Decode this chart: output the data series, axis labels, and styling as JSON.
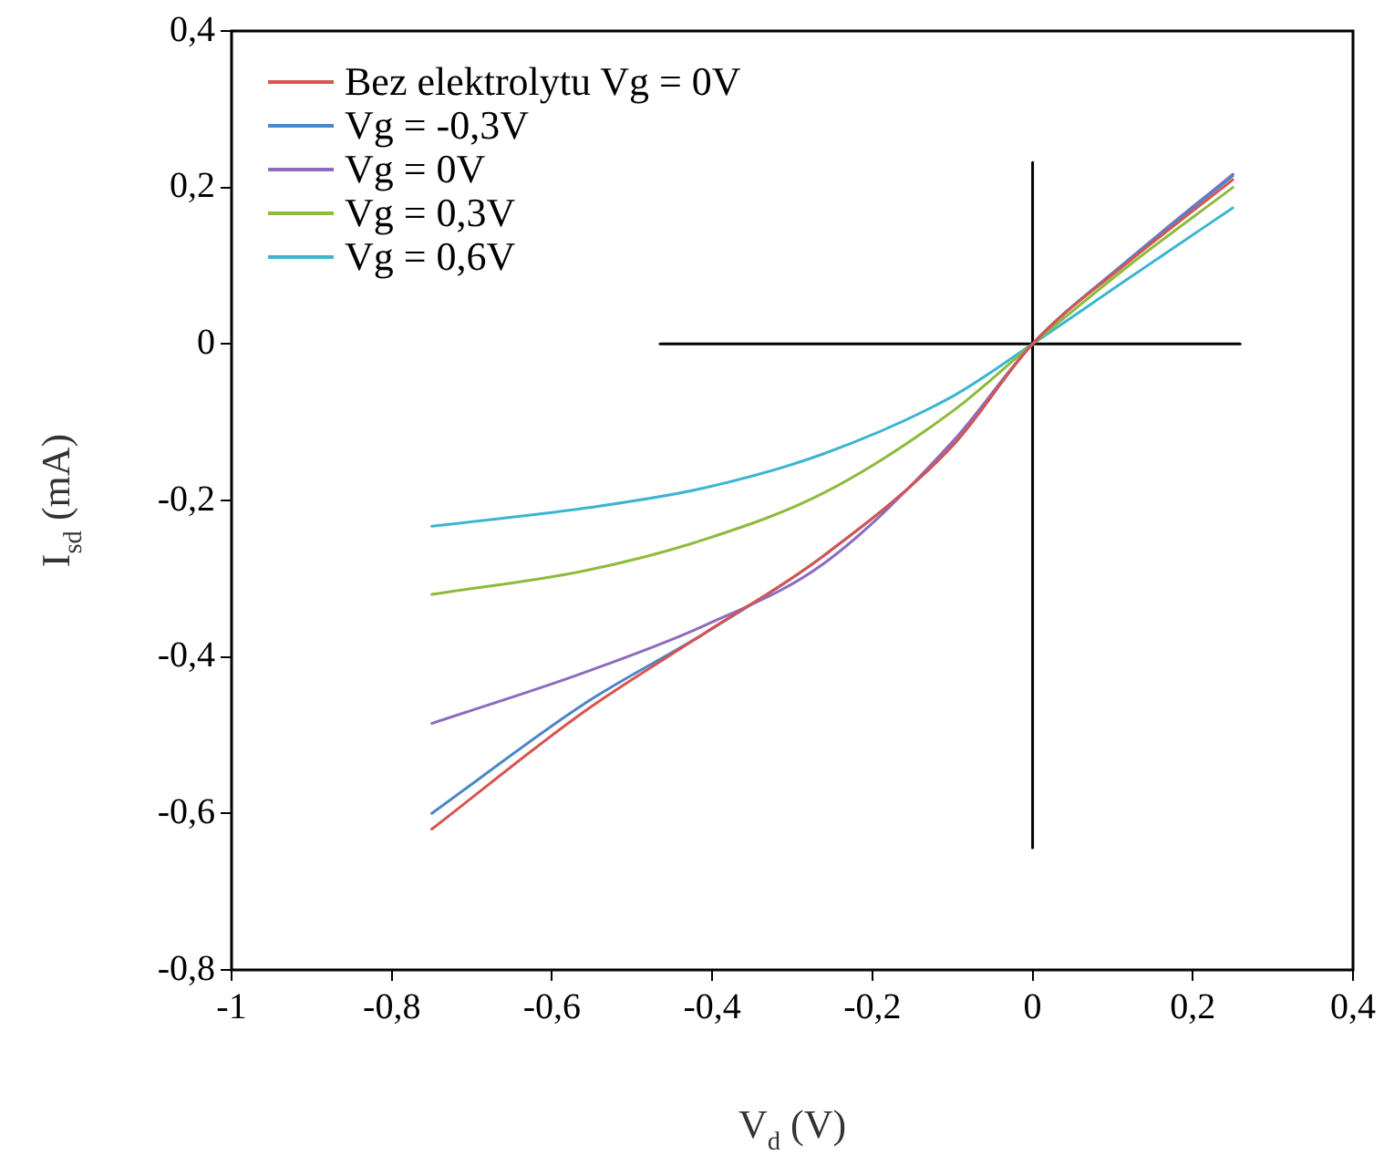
{
  "chart_data": {
    "type": "line",
    "xlabel": "V$_{d}$ (V)",
    "ylabel": "I$_{sd}$ (mA)",
    "xlim": [
      -1,
      0.4
    ],
    "xticks": [
      -1,
      {
        "value": -0.8,
        "label": "-0,8"
      },
      {
        "value": -0.6,
        "label": "-0,6"
      },
      {
        "value": -0.4,
        "label": "-0,4"
      },
      {
        "value": -0.2,
        "label": "-0,2"
      },
      0,
      {
        "value": 0.2,
        "label": "0,2"
      },
      {
        "value": 0.4,
        "label": "0,4"
      }
    ],
    "ylim": [
      -0.8,
      0.4
    ],
    "yticks": [
      {
        "value": -0.8,
        "label": "-0,8"
      },
      {
        "value": -0.6,
        "label": "-0,6"
      },
      {
        "value": -0.4,
        "label": "-0,4"
      },
      {
        "value": -0.2,
        "label": "-0,2"
      },
      0,
      {
        "value": 0.2,
        "label": "0,2"
      },
      {
        "value": 0.4,
        "label": "0,4"
      }
    ],
    "grid": false,
    "legend": "top left",
    "marker": "none",
    "line_style": "solid",
    "x": [
      -0.75,
      -0.56,
      -0.41,
      -0.26,
      -0.1,
      0,
      0.12,
      0.25
    ],
    "series": [
      {
        "name": "Bez elektrolytu Vg = 0V",
        "color": "#d9534f",
        "values": [
          -0.62,
          -0.47,
          -0.37,
          -0.27,
          -0.13,
          0,
          0.105,
          0.21
        ]
      },
      {
        "name": "Vg = -0,3V",
        "color": "#4a86c8",
        "values": [
          -0.6,
          -0.46,
          -0.37,
          -0.27,
          -0.13,
          0,
          0.107,
          0.215
        ]
      },
      {
        "name": "Vg = 0V",
        "color": "#8e6bbf",
        "values": [
          -0.485,
          -0.42,
          -0.36,
          -0.28,
          -0.125,
          0,
          0.108,
          0.217
        ]
      },
      {
        "name": "Vg = 0,3V",
        "color": "#8dbb3c",
        "values": [
          -0.32,
          -0.29,
          -0.25,
          -0.19,
          -0.086,
          0,
          0.1,
          0.2
        ]
      },
      {
        "name": "Vg = 0,6V",
        "color": "#3bb5d0",
        "values": [
          -0.233,
          -0.21,
          -0.184,
          -0.14,
          -0.067,
          0,
          0.084,
          0.174
        ]
      },
      {
        "color": "#000000",
        "x": [
          -0.465,
          0.259
        ],
        "values": [
          0,
          0
        ]
      },
      {
        "color": "#000000",
        "x": [
          0,
          0
        ],
        "values": [
          0.232,
          -0.644
        ]
      }
    ]
  }
}
